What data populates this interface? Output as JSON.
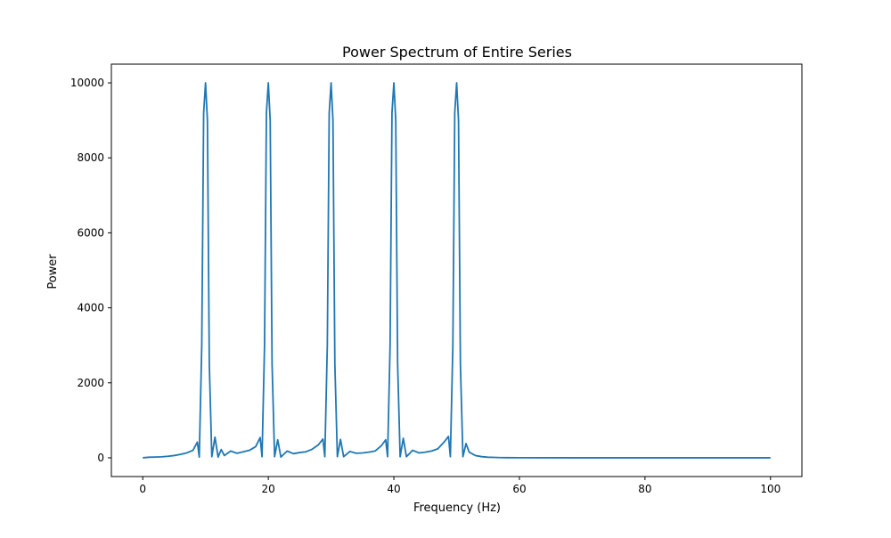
{
  "chart_data": {
    "type": "line",
    "title": "Power Spectrum of Entire Series",
    "xlabel": "Frequency (Hz)",
    "ylabel": "Power",
    "xlim": [
      -5,
      105
    ],
    "ylim": [
      -500,
      10500
    ],
    "xticks": [
      0,
      20,
      40,
      60,
      80,
      100
    ],
    "yticks": [
      0,
      2000,
      4000,
      6000,
      8000,
      10000
    ],
    "grid": false,
    "legend": "none",
    "series": [
      {
        "color": "#1f77b4",
        "peaks_hz": [
          10,
          20,
          30,
          40,
          50
        ],
        "peak_power": 10000,
        "x": [
          0,
          1,
          2,
          3,
          4,
          5,
          6,
          7,
          8,
          8.7,
          9.0,
          9.4,
          9.7,
          10.0,
          10.3,
          10.6,
          11.0,
          11.5,
          12.0,
          12.5,
          13.0,
          14.0,
          15.0,
          16.0,
          17.0,
          18.0,
          18.7,
          19.0,
          19.4,
          19.7,
          20.0,
          20.3,
          20.6,
          21.0,
          21.5,
          22.0,
          23.0,
          24.0,
          25.0,
          26.0,
          27.0,
          28.0,
          28.7,
          29.0,
          29.4,
          29.7,
          30.0,
          30.3,
          30.6,
          31.0,
          31.5,
          32.0,
          33.0,
          34.0,
          35.0,
          36.0,
          37.0,
          38.0,
          38.7,
          39.0,
          39.4,
          39.7,
          40.0,
          40.3,
          40.6,
          41.0,
          41.5,
          42.0,
          43.0,
          44.0,
          45.0,
          46.0,
          47.0,
          48.0,
          48.7,
          49.0,
          49.4,
          49.7,
          50.0,
          50.3,
          50.6,
          51.0,
          51.5,
          52.0,
          53.0,
          54.0,
          55.0,
          56.0,
          57.0,
          58.0,
          60.0,
          70.0,
          80.0,
          90.0,
          100.0
        ],
        "y": [
          0,
          15,
          20,
          25,
          40,
          60,
          90,
          130,
          200,
          420,
          20,
          3000,
          9200,
          10000,
          9000,
          2500,
          30,
          550,
          20,
          220,
          60,
          180,
          120,
          160,
          200,
          300,
          540,
          30,
          3000,
          9200,
          10000,
          9000,
          2500,
          30,
          480,
          20,
          180,
          110,
          140,
          160,
          230,
          350,
          500,
          30,
          3000,
          9200,
          10000,
          9000,
          2500,
          30,
          490,
          30,
          170,
          120,
          130,
          150,
          180,
          320,
          480,
          30,
          3000,
          9200,
          10000,
          9000,
          2500,
          30,
          520,
          30,
          200,
          130,
          150,
          180,
          240,
          420,
          570,
          30,
          3000,
          9200,
          10000,
          9000,
          2500,
          30,
          380,
          150,
          60,
          30,
          15,
          10,
          5,
          3,
          1,
          0,
          0,
          0,
          0
        ]
      }
    ]
  }
}
